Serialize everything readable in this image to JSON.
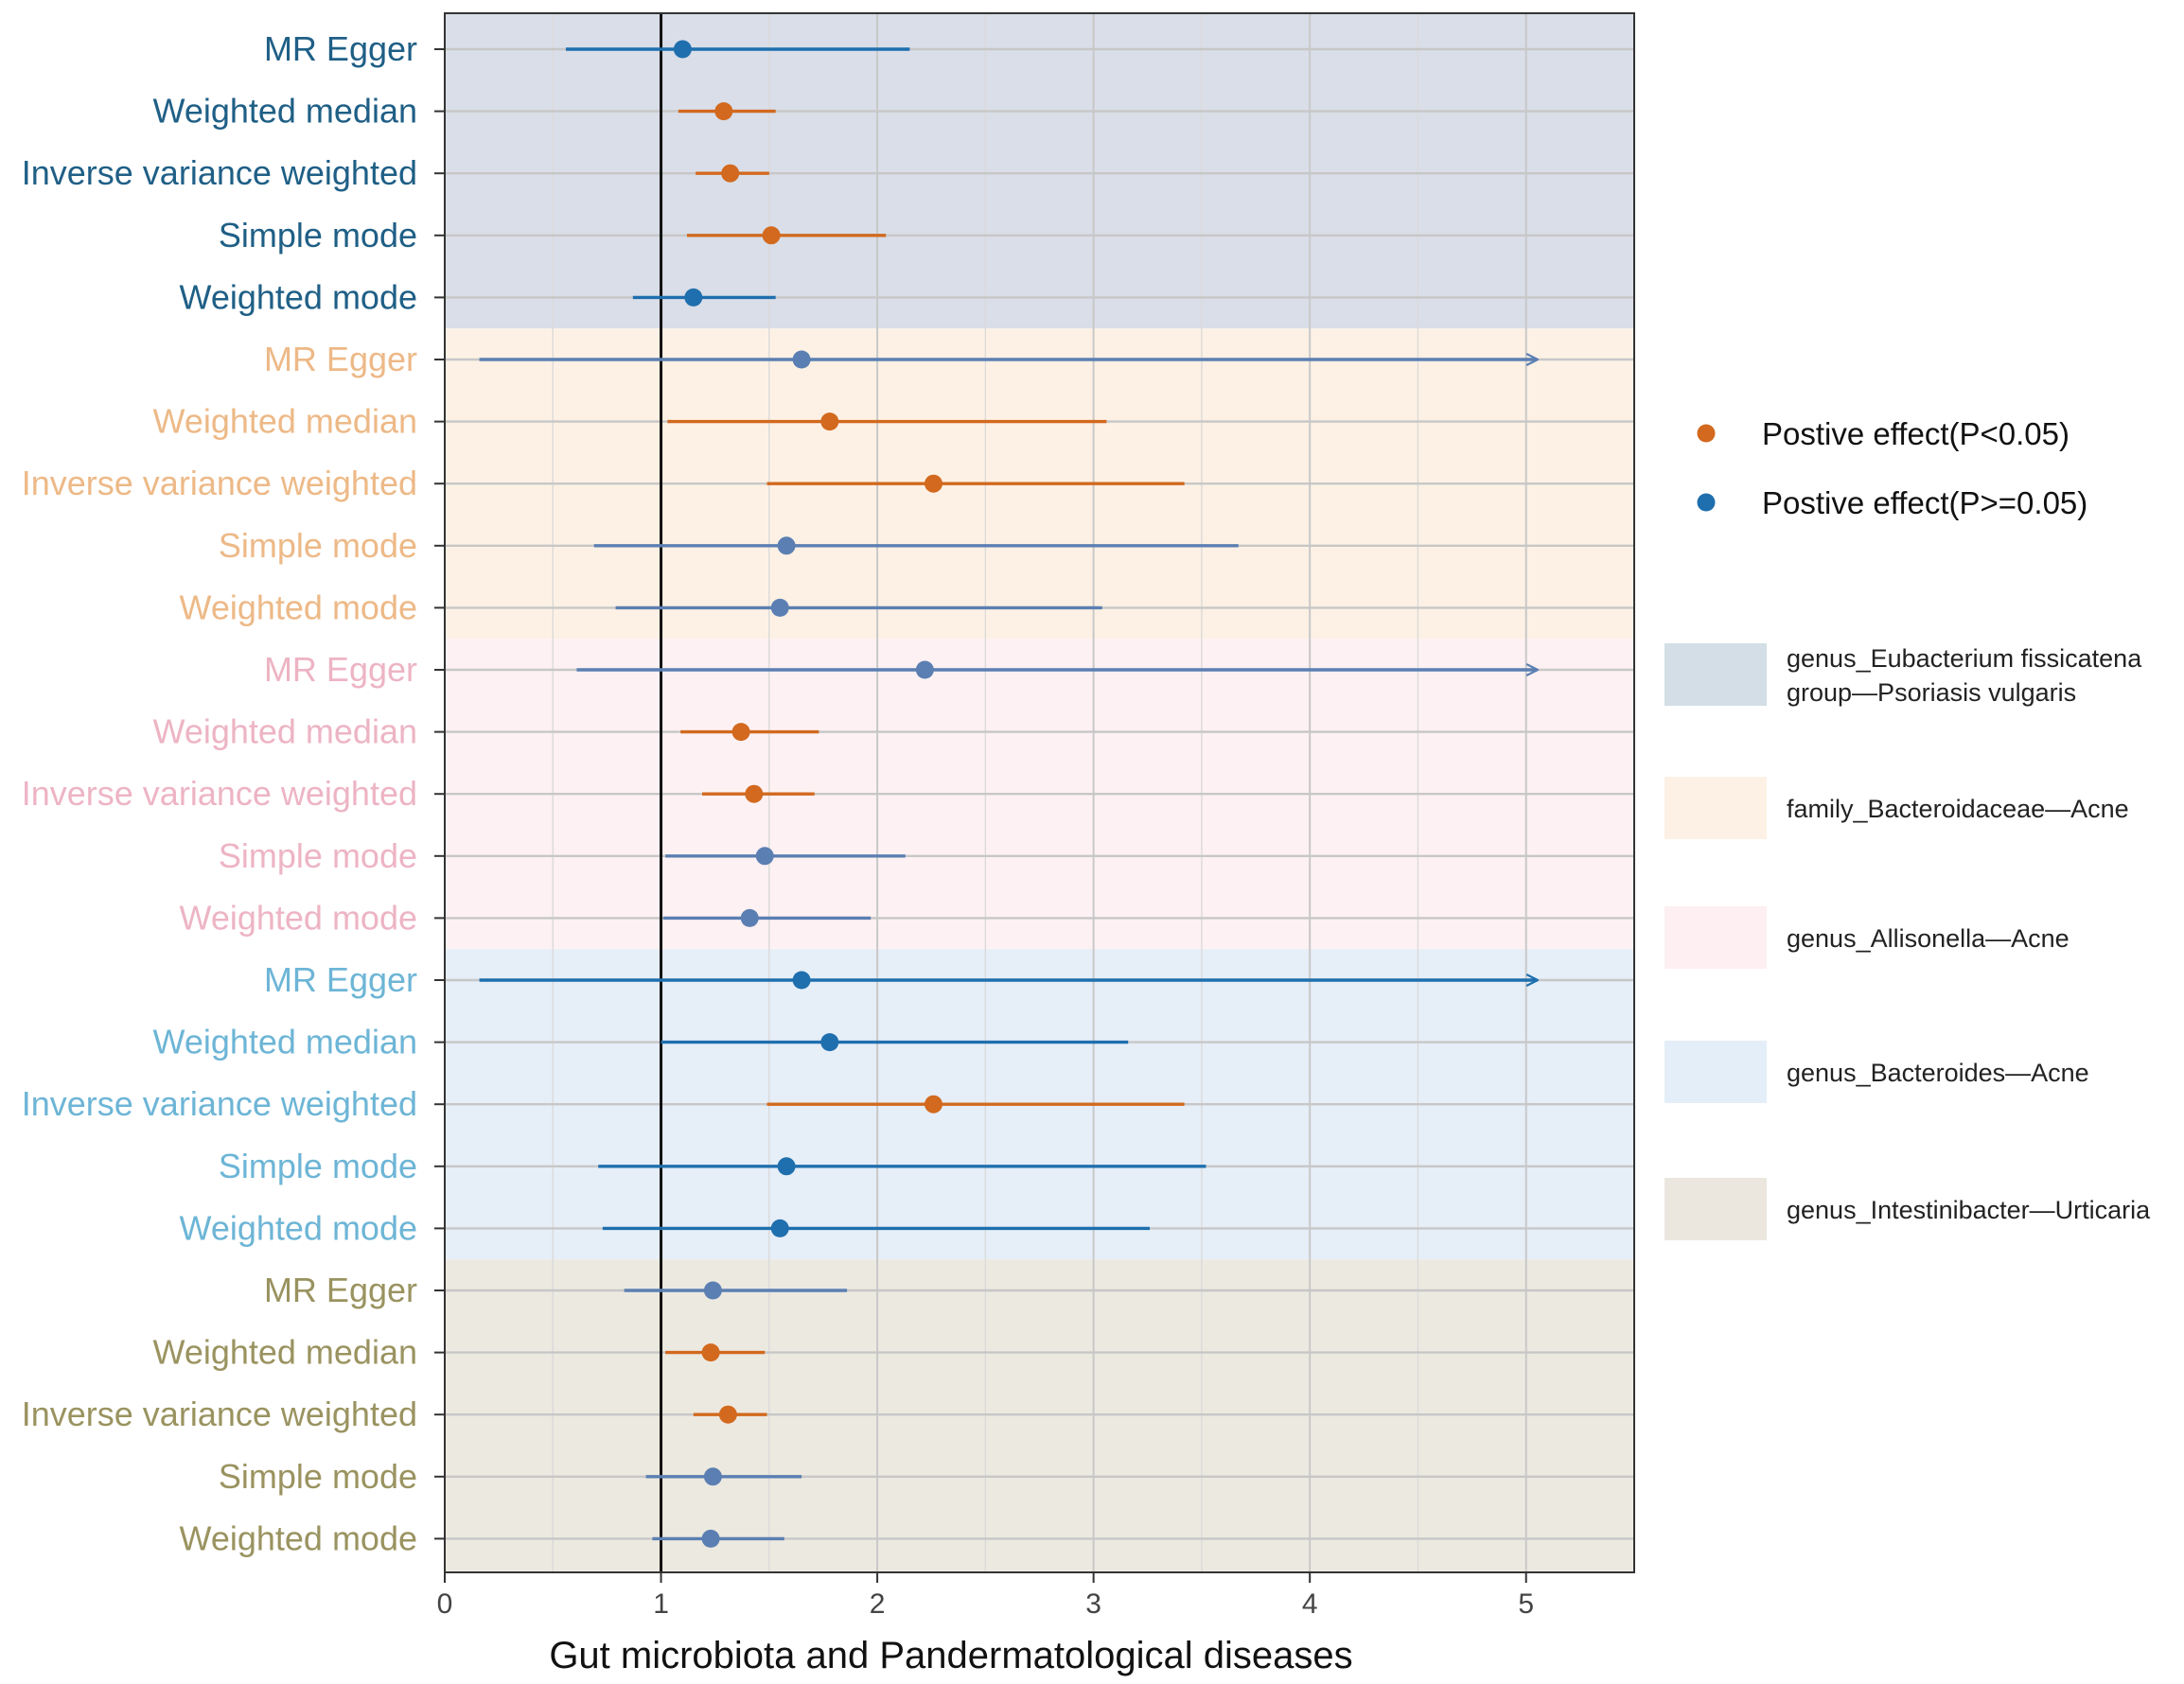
{
  "chart_data": {
    "type": "forest",
    "xlabel": "Gut microbiota and Pandermatological diseases",
    "xlim": [
      0,
      5.5
    ],
    "xticks": [
      0,
      1,
      2,
      3,
      4,
      5
    ],
    "reference_line": 1,
    "colors": {
      "significant": "#D2691E",
      "not_significant_dark": "#1F6FAE",
      "not_significant_muted": "#5B7FB2"
    },
    "legend": [
      {
        "label": "Postive effect(P<0.05)",
        "color": "#D2691E"
      },
      {
        "label": "Postive effect(P>=0.05)",
        "color": "#1F6FAE"
      }
    ],
    "groups": [
      {
        "name": "genus_Eubacterium fissicatena group—Psoriasis vulgaris",
        "name_lines": [
          "genus_Eubacterium fissicatena",
          "group—Psoriasis vulgaris"
        ],
        "bg": "#D9DEE8",
        "legend_swatch": "#D3DEE6",
        "label_color": "#1F5F86",
        "rows": [
          {
            "method": "MR Egger",
            "or": 1.1,
            "lo": 0.56,
            "hi": 2.15,
            "sig": false,
            "arrow": false
          },
          {
            "method": "Weighted median",
            "or": 1.29,
            "lo": 1.08,
            "hi": 1.53,
            "sig": true,
            "arrow": false
          },
          {
            "method": "Inverse variance weighted",
            "or": 1.32,
            "lo": 1.16,
            "hi": 1.5,
            "sig": true,
            "arrow": false
          },
          {
            "method": "Simple mode",
            "or": 1.51,
            "lo": 1.12,
            "hi": 2.04,
            "sig": true,
            "arrow": false
          },
          {
            "method": "Weighted mode",
            "or": 1.15,
            "lo": 0.87,
            "hi": 1.53,
            "sig": false,
            "arrow": false
          }
        ]
      },
      {
        "name": "family_Bacteroidaceae—Acne",
        "name_lines": [
          "family_Bacteroidaceae—Acne"
        ],
        "bg": "#FDF1E5",
        "legend_swatch": "#FDF1E5",
        "label_color": "#EDB987",
        "rows": [
          {
            "method": "MR Egger",
            "or": 1.65,
            "lo": 0.16,
            "hi": 5.05,
            "sig": false,
            "arrow": true
          },
          {
            "method": "Weighted median",
            "or": 1.78,
            "lo": 1.03,
            "hi": 3.06,
            "sig": true,
            "arrow": false
          },
          {
            "method": "Inverse variance weighted",
            "or": 2.26,
            "lo": 1.49,
            "hi": 3.42,
            "sig": true,
            "arrow": false
          },
          {
            "method": "Simple mode",
            "or": 1.58,
            "lo": 0.69,
            "hi": 3.67,
            "sig": false,
            "arrow": false
          },
          {
            "method": "Weighted mode",
            "or": 1.55,
            "lo": 0.79,
            "hi": 3.04,
            "sig": false,
            "arrow": false
          }
        ]
      },
      {
        "name": "genus_Allisonella—Acne",
        "name_lines": [
          "genus_Allisonella—Acne"
        ],
        "bg": "#FDF1F3",
        "legend_swatch": "#FDEFF2",
        "label_color": "#EDB4C4",
        "rows": [
          {
            "method": "MR Egger",
            "or": 2.22,
            "lo": 0.61,
            "hi": 5.05,
            "sig": false,
            "arrow": true
          },
          {
            "method": "Weighted median",
            "or": 1.37,
            "lo": 1.09,
            "hi": 1.73,
            "sig": true,
            "arrow": false
          },
          {
            "method": "Inverse variance weighted",
            "or": 1.43,
            "lo": 1.19,
            "hi": 1.71,
            "sig": true,
            "arrow": false
          },
          {
            "method": "Simple mode",
            "or": 1.48,
            "lo": 1.02,
            "hi": 2.13,
            "sig": false,
            "arrow": false
          },
          {
            "method": "Weighted mode",
            "or": 1.41,
            "lo": 1.01,
            "hi": 1.97,
            "sig": false,
            "arrow": false
          }
        ]
      },
      {
        "name": "genus_Bacteroides—Acne",
        "name_lines": [
          "genus_Bacteroides—Acne"
        ],
        "bg": "#E6EEF8",
        "legend_swatch": "#E4EEF8",
        "label_color": "#6DB5D6",
        "rows": [
          {
            "method": "MR Egger",
            "or": 1.65,
            "lo": 0.16,
            "hi": 5.05,
            "sig": false,
            "arrow": true
          },
          {
            "method": "Weighted median",
            "or": 1.78,
            "lo": 1.0,
            "hi": 3.16,
            "sig": false,
            "arrow": false
          },
          {
            "method": "Inverse variance weighted",
            "or": 2.26,
            "lo": 1.49,
            "hi": 3.42,
            "sig": true,
            "arrow": false
          },
          {
            "method": "Simple mode",
            "or": 1.58,
            "lo": 0.71,
            "hi": 3.52,
            "sig": false,
            "arrow": false
          },
          {
            "method": "Weighted mode",
            "or": 1.55,
            "lo": 0.73,
            "hi": 3.26,
            "sig": false,
            "arrow": false
          }
        ]
      },
      {
        "name": "genus_Intestinibacter—Urticaria",
        "name_lines": [
          "genus_Intestinibacter—Urticaria"
        ],
        "bg": "#ECE9E0",
        "legend_swatch": "#EBE7DF",
        "label_color": "#9A9360",
        "rows": [
          {
            "method": "MR Egger",
            "or": 1.24,
            "lo": 0.83,
            "hi": 1.86,
            "sig": false,
            "arrow": false
          },
          {
            "method": "Weighted median",
            "or": 1.23,
            "lo": 1.02,
            "hi": 1.48,
            "sig": true,
            "arrow": false
          },
          {
            "method": "Inverse variance weighted",
            "or": 1.31,
            "lo": 1.15,
            "hi": 1.49,
            "sig": true,
            "arrow": false
          },
          {
            "method": "Simple mode",
            "or": 1.24,
            "lo": 0.93,
            "hi": 1.65,
            "sig": false,
            "arrow": false
          },
          {
            "method": "Weighted mode",
            "or": 1.23,
            "lo": 0.96,
            "hi": 1.57,
            "sig": false,
            "arrow": false
          }
        ]
      }
    ]
  }
}
